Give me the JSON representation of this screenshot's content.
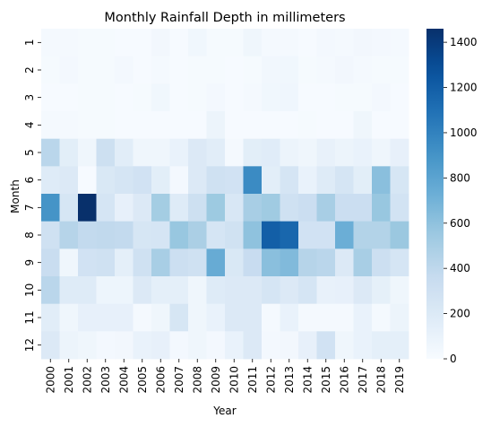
{
  "chart_data": {
    "type": "heatmap",
    "title": "Monthly Rainfall Depth in millimeters",
    "xlabel": "Year",
    "ylabel": "Month",
    "x_categories": [
      "2000",
      "2001",
      "2002",
      "2003",
      "2004",
      "2005",
      "2006",
      "2007",
      "2008",
      "2009",
      "2010",
      "2011",
      "2012",
      "2013",
      "2014",
      "2015",
      "2016",
      "2017",
      "2018",
      "2019"
    ],
    "y_categories": [
      "1",
      "2",
      "3",
      "4",
      "5",
      "6",
      "7",
      "8",
      "9",
      "10",
      "11",
      "12"
    ],
    "values": [
      [
        20,
        20,
        15,
        15,
        10,
        10,
        40,
        10,
        50,
        15,
        15,
        60,
        20,
        25,
        10,
        30,
        20,
        40,
        30,
        20
      ],
      [
        15,
        30,
        15,
        15,
        30,
        10,
        20,
        10,
        15,
        15,
        10,
        15,
        45,
        50,
        15,
        20,
        40,
        20,
        15,
        15
      ],
      [
        10,
        10,
        15,
        15,
        10,
        15,
        50,
        10,
        15,
        30,
        10,
        25,
        50,
        55,
        10,
        10,
        15,
        15,
        30,
        10
      ],
      [
        20,
        20,
        15,
        15,
        10,
        10,
        10,
        10,
        10,
        80,
        10,
        10,
        10,
        10,
        15,
        10,
        10,
        60,
        10,
        10
      ],
      [
        420,
        150,
        60,
        310,
        160,
        60,
        60,
        100,
        200,
        160,
        20,
        150,
        170,
        80,
        60,
        110,
        80,
        100,
        60,
        120
      ],
      [
        180,
        200,
        10,
        220,
        250,
        280,
        150,
        30,
        200,
        300,
        280,
        950,
        150,
        250,
        100,
        180,
        250,
        150,
        620,
        240
      ],
      [
        900,
        240,
        1460,
        250,
        120,
        200,
        520,
        180,
        310,
        550,
        230,
        500,
        540,
        300,
        330,
        500,
        330,
        330,
        570,
        270
      ],
      [
        300,
        440,
        380,
        390,
        380,
        240,
        250,
        570,
        490,
        250,
        290,
        600,
        1200,
        1150,
        280,
        280,
        730,
        450,
        450,
        560
      ],
      [
        340,
        60,
        280,
        300,
        140,
        300,
        500,
        320,
        300,
        750,
        220,
        350,
        620,
        650,
        440,
        420,
        200,
        500,
        320,
        250
      ],
      [
        420,
        180,
        180,
        70,
        70,
        200,
        140,
        140,
        60,
        180,
        200,
        200,
        250,
        200,
        250,
        110,
        120,
        200,
        130,
        60
      ],
      [
        160,
        60,
        120,
        120,
        120,
        20,
        60,
        240,
        60,
        100,
        200,
        200,
        20,
        100,
        20,
        20,
        20,
        100,
        20,
        80
      ],
      [
        200,
        80,
        60,
        30,
        40,
        100,
        120,
        30,
        60,
        30,
        100,
        200,
        30,
        40,
        120,
        280,
        60,
        100,
        140,
        140
      ]
    ],
    "vmin": 0,
    "vmax": 1460,
    "colormap": "Blues",
    "colorbar_ticks": [
      0,
      200,
      400,
      600,
      800,
      1000,
      1200,
      1400
    ],
    "colorbar_labels": [
      "0",
      "200",
      "400",
      "600",
      "800",
      "1000",
      "1200",
      "1400"
    ]
  }
}
